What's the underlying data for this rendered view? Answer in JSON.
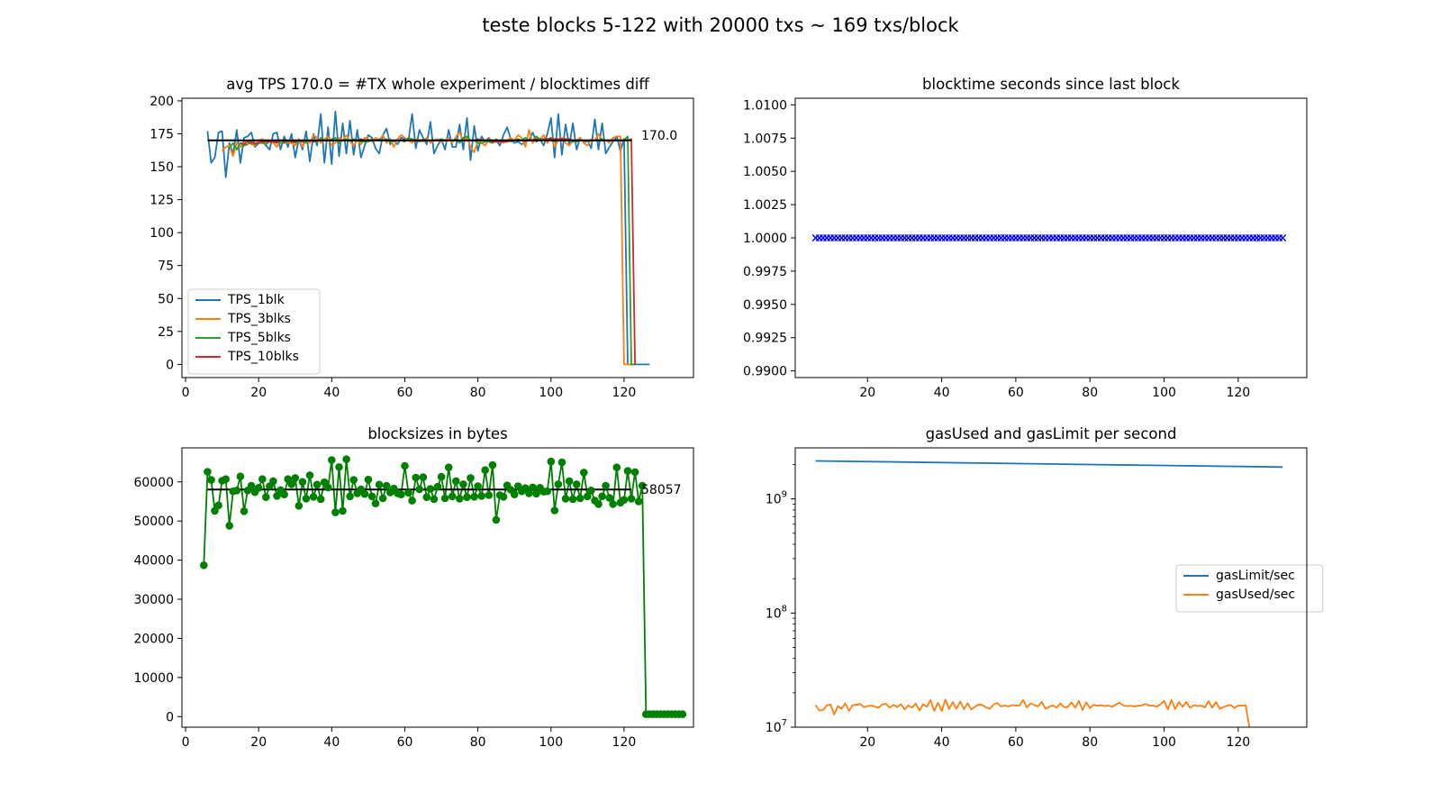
{
  "figure": {
    "suptitle": "teste blocks 5-122 with 20000 txs ~ 169 txs/block"
  },
  "chart_data": [
    {
      "id": "tps",
      "type": "line",
      "title": "avg TPS 170.0 = #TX whole experiment / blocktimes diff",
      "xlabel": "",
      "ylabel": "",
      "xlim": [
        -1,
        139
      ],
      "ylim": [
        -10,
        202
      ],
      "xticks": [
        0,
        20,
        40,
        60,
        80,
        100,
        120
      ],
      "yticks": [
        0,
        25,
        50,
        75,
        100,
        125,
        150,
        175,
        200
      ],
      "legend": "lower-left",
      "series": [
        {
          "name": "TPS_1blk",
          "color": "#1f77b4",
          "x_start": 6,
          "values": [
            177,
            153,
            157,
            176,
            177,
            142,
            168,
            160,
            178,
            153,
            172,
            173,
            176,
            165,
            168,
            170,
            166,
            163,
            175,
            176,
            163,
            173,
            165,
            175,
            157,
            171,
            163,
            177,
            154,
            175,
            166,
            190,
            153,
            180,
            152,
            192,
            158,
            183,
            160,
            185,
            159,
            178,
            157,
            166,
            174,
            172,
            164,
            160,
            174,
            179,
            167,
            170,
            167,
            172,
            171,
            170,
            190,
            164,
            178,
            172,
            167,
            184,
            160,
            166,
            171,
            163,
            178,
            165,
            165,
            182,
            163,
            187,
            155,
            181,
            162,
            173,
            169,
            172,
            168,
            170,
            166,
            174,
            180,
            171,
            168,
            169,
            167,
            169,
            170,
            176,
            169,
            171,
            166,
            175,
            187,
            157,
            190,
            159,
            182,
            166,
            183,
            163,
            172,
            168,
            170,
            164,
            186,
            163,
            183,
            160,
            165,
            169,
            173,
            162,
            171,
            0,
            0,
            0,
            0,
            0,
            0,
            0
          ],
          "values_note": ""
        },
        {
          "name": "TPS_3blks",
          "color": "#ff7f0e",
          "x_start": 10,
          "values": [
            162,
            165,
            166,
            158,
            168,
            165,
            168,
            170,
            167,
            166,
            170,
            171,
            167,
            170,
            168,
            165,
            170,
            170,
            168,
            168,
            166,
            171,
            165,
            170,
            168,
            174,
            172,
            168,
            171,
            173,
            166,
            168,
            172,
            170,
            174,
            169,
            166,
            170,
            167,
            172,
            171,
            169,
            172,
            170,
            174,
            168,
            171,
            165,
            171,
            174,
            172,
            170,
            168,
            171,
            170,
            169,
            172,
            168,
            170,
            171,
            169,
            170,
            172,
            168,
            173,
            176,
            170,
            172,
            165,
            161,
            170,
            168,
            166,
            171,
            170,
            169,
            170,
            168,
            170,
            172,
            170,
            174,
            172,
            165,
            178,
            168,
            172,
            171,
            174,
            168,
            172,
            165,
            170,
            172,
            168,
            166,
            170,
            170,
            172,
            168,
            166,
            171,
            170,
            175,
            170,
            170,
            168,
            172,
            173,
            173,
            0,
            0,
            0
          ]
        },
        {
          "name": "TPS_5blks",
          "color": "#2ca02c",
          "x_start": 12,
          "values": [
            164,
            168,
            163,
            168,
            166,
            167,
            169,
            167,
            168,
            168,
            167,
            169,
            170,
            169,
            168,
            168,
            169,
            170,
            168,
            169,
            170,
            168,
            170,
            169,
            169,
            172,
            170,
            170,
            171,
            172,
            168,
            170,
            171,
            170,
            171,
            170,
            169,
            169,
            169,
            171,
            170,
            171,
            170,
            171,
            169,
            170,
            170,
            170,
            169,
            172,
            171,
            170,
            169,
            171,
            170,
            170,
            170,
            170,
            171,
            170,
            170,
            170,
            171,
            168,
            172,
            173,
            170,
            170,
            168,
            168,
            169,
            169,
            168,
            171,
            169,
            170,
            170,
            169,
            170,
            171,
            170,
            172,
            170,
            170,
            173,
            171,
            171,
            171,
            172,
            169,
            171,
            170,
            170,
            170,
            169,
            169,
            170,
            170,
            170,
            170,
            170,
            170,
            171,
            170,
            170,
            170,
            170,
            170,
            170,
            173,
            0,
            0
          ]
        },
        {
          "name": "TPS_10blks",
          "color": "#d62728",
          "x_start": 15,
          "values": [
            168,
            167,
            169,
            168,
            168,
            168,
            169,
            169,
            169,
            169,
            168,
            170,
            169,
            170,
            169,
            169,
            170,
            169,
            170,
            170,
            169,
            170,
            170,
            170,
            170,
            170,
            170,
            170,
            170,
            170,
            170,
            170,
            170,
            171,
            170,
            170,
            170,
            170,
            170,
            170,
            170,
            170,
            170,
            170,
            170,
            170,
            170,
            170,
            170,
            170,
            170,
            170,
            170,
            170,
            170,
            170,
            170,
            170,
            170,
            170,
            170,
            170,
            170,
            170,
            170,
            171,
            170,
            170,
            170,
            169,
            169,
            169,
            169,
            169,
            170,
            170,
            170,
            170,
            170,
            170,
            170,
            171,
            170,
            171,
            171,
            171,
            171,
            171,
            171,
            171,
            171,
            170,
            170,
            170,
            170,
            170,
            170,
            170,
            170,
            170,
            170,
            170,
            170,
            170,
            170,
            170,
            170,
            171,
            0
          ]
        }
      ],
      "hline": {
        "y": 170.0,
        "x_from": 6,
        "x_to": 122,
        "color": "#000000",
        "label": "170.0"
      }
    },
    {
      "id": "blocktime",
      "type": "scatter",
      "title": "blocktime seconds since last block",
      "xlabel": "",
      "ylabel": "",
      "xlim": [
        0.5,
        138.5
      ],
      "ylim": [
        0.9895,
        1.0105
      ],
      "xticks": [
        20,
        40,
        60,
        80,
        100,
        120
      ],
      "yticks": [
        0.99,
        0.9925,
        0.995,
        0.9975,
        1.0,
        1.0025,
        1.005,
        1.0075,
        1.01
      ],
      "ytick_labels": [
        "0.9900",
        "0.9925",
        "0.9950",
        "0.9975",
        "1.0000",
        "1.0025",
        "1.0050",
        "1.0075",
        "1.0100"
      ],
      "marker": "x",
      "color": "#0000ff",
      "x_range": [
        6,
        132
      ],
      "y_constant": 1.0
    },
    {
      "id": "blocksize",
      "type": "line",
      "title": "blocksizes in bytes",
      "xlabel": "",
      "ylabel": "",
      "xlim": [
        -1,
        139
      ],
      "ylim": [
        -2700,
        68700
      ],
      "xticks": [
        0,
        20,
        40,
        60,
        80,
        100,
        120
      ],
      "yticks": [
        0,
        10000,
        20000,
        30000,
        40000,
        50000,
        60000
      ],
      "color": "#008000",
      "marker": "o",
      "x_start": 5,
      "values": [
        38700,
        62600,
        60500,
        52600,
        54000,
        60300,
        60700,
        48800,
        57600,
        57800,
        61400,
        52500,
        57800,
        59000,
        57400,
        58500,
        60700,
        56100,
        58900,
        60200,
        56400,
        57900,
        56800,
        60700,
        59400,
        61000,
        53900,
        60000,
        55700,
        61700,
        56200,
        59300,
        55600,
        59900,
        58600,
        65600,
        52200,
        63800,
        52600,
        65800,
        56300,
        60500,
        57100,
        58100,
        56900,
        60600,
        56300,
        54500,
        59300,
        55800,
        59000,
        57300,
        58300,
        57100,
        56800,
        64100,
        57200,
        55200,
        61100,
        58100,
        61200,
        56100,
        58200,
        55600,
        58800,
        61300,
        55800,
        63700,
        56300,
        60200,
        55700,
        59400,
        56100,
        61000,
        56200,
        58900,
        56400,
        63000,
        56600,
        64300,
        50300,
        56600,
        56200,
        59100,
        58000,
        56800,
        58900,
        57600,
        58400,
        57100,
        58600,
        57000,
        58500,
        57500,
        57600,
        65200,
        52700,
        59400,
        65000,
        55700,
        60200,
        55600,
        59400,
        55800,
        62400,
        56300,
        57800,
        55200,
        54300,
        56300,
        59000,
        55900,
        54300,
        63700,
        54700,
        55400,
        62800,
        55700,
        62500,
        55000,
        59000,
        620,
        620,
        620,
        620,
        620,
        620,
        620,
        620,
        620,
        620,
        620
      ],
      "hline": {
        "y": 58057,
        "x_from": 6,
        "x_to": 122,
        "color": "#000000",
        "label": "58057"
      }
    },
    {
      "id": "gas",
      "type": "line",
      "title": "gasUsed and gasLimit per second",
      "xlabel": "",
      "ylabel": "",
      "xlim": [
        0.5,
        138.5
      ],
      "yscale": "log",
      "ylim": [
        10000000,
        2800000000
      ],
      "xticks": [
        20,
        40,
        60,
        80,
        100,
        120
      ],
      "yticks": [
        10000000,
        100000000,
        1000000000
      ],
      "ytick_labels": [
        {
          "base": "10",
          "exp": "7"
        },
        {
          "base": "10",
          "exp": "8"
        },
        {
          "base": "10",
          "exp": "9"
        }
      ],
      "legend": "center-right",
      "series": [
        {
          "name": "gasLimit/sec",
          "color": "#1f77b4",
          "x": [
            6,
            132
          ],
          "values": [
            2150000000,
            1900000000
          ]
        },
        {
          "name": "gasUsed/sec",
          "color": "#ff7f0e",
          "x_start": 6,
          "values": [
            15600000,
            14000000,
            14200000,
            15500000,
            15800000,
            12900000,
            15300000,
            14500000,
            16200000,
            13900000,
            15600000,
            15700000,
            16000000,
            15000000,
            15300000,
            15500000,
            15100000,
            14800000,
            15900000,
            16000000,
            14800000,
            15700000,
            15000000,
            15900000,
            14300000,
            15500000,
            14800000,
            16100000,
            14000000,
            15900000,
            15100000,
            17300000,
            13900000,
            16400000,
            13800000,
            17500000,
            14400000,
            16600000,
            14500000,
            16800000,
            14400000,
            16200000,
            14300000,
            15100000,
            15800000,
            15600000,
            14900000,
            14500000,
            15800000,
            16300000,
            15200000,
            15500000,
            15200000,
            15600000,
            15500000,
            15500000,
            17300000,
            14900000,
            16200000,
            15600000,
            15200000,
            16700000,
            14500000,
            15100000,
            15500000,
            14800000,
            16200000,
            15000000,
            15000000,
            16500000,
            14800000,
            17000000,
            14100000,
            16500000,
            14700000,
            15700000,
            15400000,
            15600000,
            15300000,
            15500000,
            15100000,
            15800000,
            16400000,
            15500000,
            15300000,
            15400000,
            15200000,
            15400000,
            15500000,
            16000000,
            15400000,
            15500000,
            15100000,
            15900000,
            17000000,
            14300000,
            17300000,
            14400000,
            16600000,
            15100000,
            16600000,
            14800000,
            15600000,
            15300000,
            15500000,
            14900000,
            16900000,
            14800000,
            16600000,
            14500000,
            15000000,
            15400000,
            15700000,
            14700000,
            15500000,
            15400000,
            15600000,
            10000000
          ]
        }
      ]
    }
  ]
}
